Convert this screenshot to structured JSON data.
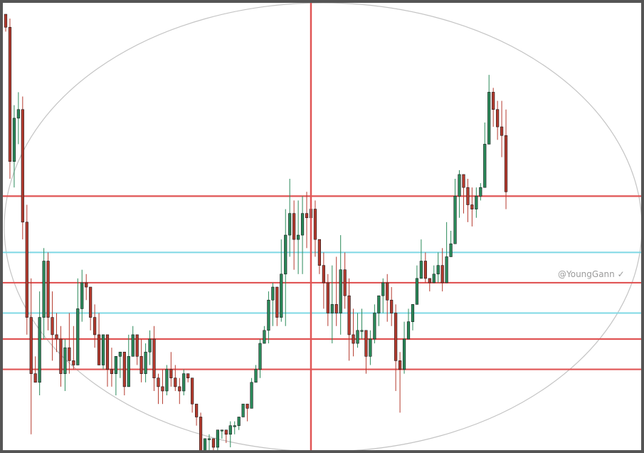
{
  "watermark": "@YoungGann ✓",
  "colors": {
    "up": "#2a8a5a",
    "down": "#b53a2e",
    "red_line": "#e05555",
    "cyan_line": "#7fd8e4",
    "ellipse": "#c4c4c4",
    "frame": "#555555"
  },
  "chart_data": {
    "type": "candlestick",
    "title": "",
    "xlabel": "",
    "ylabel": "",
    "grid": false,
    "legend": "none",
    "x_range": [
      0,
      143
    ],
    "y_range": [
      0,
      100
    ],
    "candles": [
      [
        100,
        97,
        100,
        96
      ],
      [
        97,
        66,
        99,
        62
      ],
      [
        66,
        76,
        79,
        60
      ],
      [
        76,
        78,
        82,
        70
      ],
      [
        78,
        52,
        81,
        48
      ],
      [
        52,
        30,
        56,
        26
      ],
      [
        30,
        17,
        39,
        3
      ],
      [
        17,
        15,
        21,
        18
      ],
      [
        15,
        30,
        36,
        12
      ],
      [
        30,
        43,
        46,
        25
      ],
      [
        43,
        30,
        45,
        27
      ],
      [
        30,
        26,
        36,
        20
      ],
      [
        26,
        25,
        31,
        22
      ],
      [
        25,
        17,
        28,
        14
      ],
      [
        17,
        23,
        25,
        13
      ],
      [
        23,
        20,
        31,
        17
      ],
      [
        20,
        19,
        28,
        18
      ],
      [
        19,
        32,
        39,
        24
      ],
      [
        32,
        38,
        41,
        29
      ],
      [
        38,
        37,
        40,
        34
      ],
      [
        37,
        30,
        36,
        27
      ],
      [
        30,
        26,
        33,
        23
      ],
      [
        26,
        19,
        31,
        20
      ],
      [
        19,
        26,
        25,
        18
      ],
      [
        26,
        18,
        24,
        14
      ],
      [
        18,
        17,
        23,
        14
      ],
      [
        17,
        21,
        20,
        12
      ],
      [
        21,
        22,
        20,
        16
      ],
      [
        22,
        14,
        22,
        12
      ],
      [
        14,
        21,
        26,
        15
      ],
      [
        21,
        26,
        28,
        23
      ],
      [
        26,
        21,
        23,
        19
      ],
      [
        21,
        17,
        25,
        15
      ],
      [
        17,
        22,
        24,
        15
      ],
      [
        22,
        25,
        27,
        19
      ],
      [
        25,
        16,
        28,
        13
      ],
      [
        16,
        14,
        17,
        10
      ],
      [
        14,
        13,
        18,
        10
      ],
      [
        13,
        18,
        19,
        12
      ],
      [
        18,
        16,
        22,
        14
      ],
      [
        16,
        14,
        19,
        13
      ],
      [
        14,
        13,
        16,
        10
      ],
      [
        13,
        17,
        18,
        12
      ],
      [
        17,
        16,
        17,
        15
      ],
      [
        16,
        10,
        15,
        8
      ],
      [
        10,
        7,
        8,
        5
      ],
      [
        7,
        -1,
        8,
        -4
      ],
      [
        -1,
        2,
        1,
        -4
      ],
      [
        2,
        2,
        3,
        -4
      ],
      [
        2,
        0,
        2,
        -3
      ],
      [
        0,
        4,
        4,
        -4
      ],
      [
        4,
        4,
        4,
        2
      ],
      [
        4,
        3,
        4,
        1
      ],
      [
        3,
        5,
        6,
        0
      ],
      [
        5,
        5,
        6,
        3
      ],
      [
        5,
        7,
        7,
        4
      ],
      [
        7,
        10,
        10,
        7
      ],
      [
        10,
        9,
        10,
        6
      ],
      [
        9,
        15,
        16,
        12
      ],
      [
        15,
        18,
        19,
        15
      ],
      [
        18,
        24,
        25,
        16
      ],
      [
        24,
        27,
        28,
        24
      ],
      [
        27,
        34,
        36,
        24
      ],
      [
        34,
        37,
        38,
        28
      ],
      [
        37,
        30,
        37,
        28
      ],
      [
        30,
        40,
        48,
        29
      ],
      [
        40,
        49,
        55,
        28
      ],
      [
        49,
        54,
        62,
        44
      ],
      [
        54,
        48,
        57,
        41
      ],
      [
        48,
        49,
        57,
        40
      ],
      [
        49,
        54,
        58,
        40
      ],
      [
        54,
        53,
        59,
        46
      ],
      [
        53,
        55,
        62,
        50
      ],
      [
        55,
        48,
        57,
        44
      ],
      [
        48,
        42,
        47,
        40
      ],
      [
        42,
        38,
        45,
        32
      ],
      [
        38,
        31,
        40,
        28
      ],
      [
        31,
        33,
        42,
        24
      ],
      [
        33,
        31,
        44,
        28
      ],
      [
        31,
        41,
        49,
        26
      ],
      [
        41,
        35,
        45,
        32
      ],
      [
        35,
        26,
        39,
        20
      ],
      [
        26,
        24,
        32,
        21
      ],
      [
        24,
        27,
        31,
        23
      ],
      [
        27,
        27,
        32,
        25
      ],
      [
        27,
        21,
        27,
        17
      ],
      [
        21,
        25,
        27,
        19
      ],
      [
        25,
        31,
        33,
        24
      ],
      [
        31,
        35,
        34,
        28
      ],
      [
        35,
        38,
        39,
        31
      ],
      [
        38,
        34,
        40,
        29
      ],
      [
        34,
        31,
        37,
        28
      ],
      [
        31,
        20,
        33,
        13
      ],
      [
        20,
        18,
        22,
        8
      ],
      [
        18,
        25,
        29,
        17
      ],
      [
        25,
        29,
        32,
        26
      ],
      [
        29,
        33,
        33,
        27
      ],
      [
        33,
        39,
        42,
        34
      ],
      [
        39,
        43,
        48,
        39
      ],
      [
        43,
        39,
        45,
        38
      ],
      [
        39,
        38,
        38,
        36
      ],
      [
        38,
        40,
        42,
        38
      ],
      [
        40,
        42,
        45,
        38
      ],
      [
        42,
        38,
        46,
        36
      ],
      [
        38,
        44,
        52,
        42
      ],
      [
        44,
        47,
        50,
        44
      ],
      [
        47,
        58,
        62,
        50
      ],
      [
        58,
        63,
        64,
        53
      ],
      [
        63,
        60,
        63,
        54
      ],
      [
        60,
        56,
        62,
        52
      ],
      [
        56,
        55,
        60,
        51
      ],
      [
        55,
        58,
        60,
        53
      ],
      [
        58,
        60,
        61,
        57
      ],
      [
        60,
        70,
        75,
        66
      ],
      [
        70,
        82,
        86,
        80
      ],
      [
        82,
        78,
        83,
        74
      ],
      [
        78,
        74,
        80,
        71
      ],
      [
        74,
        72,
        80,
        67
      ],
      [
        72,
        59,
        78,
        55
      ]
    ],
    "red_levels": [
      58,
      38,
      25,
      18
    ],
    "cyan_levels": [
      45,
      31
    ],
    "vertical_marker_x": 72
  }
}
